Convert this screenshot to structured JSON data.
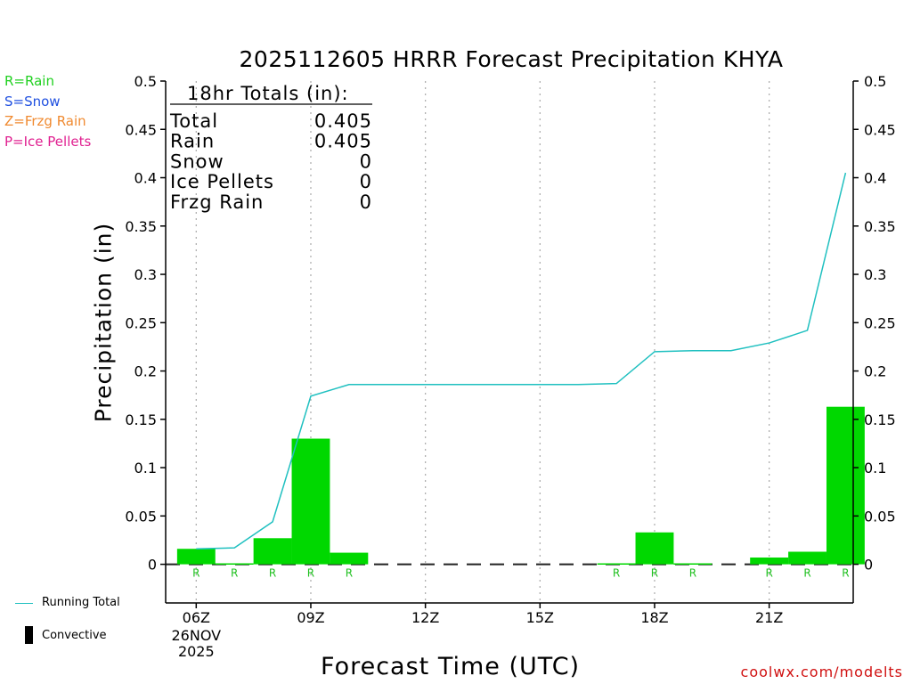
{
  "title": "2025112605 HRRR Forecast Precipitation KHYA",
  "precip_type_key": [
    {
      "label": "R=Rain",
      "color": "#20d020"
    },
    {
      "label": "S=Snow",
      "color": "#2050e0"
    },
    {
      "label": "Z=Frzg Rain",
      "color": "#f08a30"
    },
    {
      "label": "P=Ice Pellets",
      "color": "#e02090"
    }
  ],
  "totals_box": {
    "header": "18hr Totals (in):",
    "rows": [
      {
        "label": "Total",
        "value": "0.405"
      },
      {
        "label": "Rain",
        "value": "0.405"
      },
      {
        "label": "Snow",
        "value": "0"
      },
      {
        "label": "Ice Pellets",
        "value": "0"
      },
      {
        "label": "Frzg Rain",
        "value": "0"
      }
    ]
  },
  "legend": {
    "running_total": "Running Total",
    "convective": "Convective"
  },
  "credit": "coolwx.com/modelts",
  "colors": {
    "rain_bar": "#00d800",
    "running_total": "#20c0c0",
    "grid": "#b0b0b0",
    "type_marker": "#20c020",
    "convective": "#000000"
  },
  "chart_data": {
    "type": "bar",
    "xlabel": "Forecast Time (UTC)",
    "ylabel": "Precipitation (in)",
    "ylim": [
      -0.04,
      0.5
    ],
    "yticks": [
      "0",
      "0.05",
      "0.1",
      "0.15",
      "0.2",
      "0.25",
      "0.3",
      "0.35",
      "0.4",
      "0.45",
      "0.5"
    ],
    "ytick_values": [
      0,
      0.05,
      0.1,
      0.15,
      0.2,
      0.25,
      0.3,
      0.35,
      0.4,
      0.45,
      0.5
    ],
    "xlim_hours": [
      5.2,
      23.2
    ],
    "xticks": [
      {
        "hour": 6,
        "label": "06Z",
        "sub": [
          "26NOV",
          "2025"
        ]
      },
      {
        "hour": 9,
        "label": "09Z"
      },
      {
        "hour": 12,
        "label": "12Z"
      },
      {
        "hour": 15,
        "label": "15Z"
      },
      {
        "hour": 18,
        "label": "18Z"
      },
      {
        "hour": 21,
        "label": "21Z"
      }
    ],
    "grid": "vertical dotted at ticks",
    "hours": [
      6,
      7,
      8,
      9,
      10,
      11,
      12,
      13,
      14,
      15,
      16,
      17,
      18,
      19,
      20,
      21,
      22,
      23
    ],
    "hourly_precip": [
      0.016,
      0.001,
      0.027,
      0.13,
      0.012,
      0,
      0,
      0,
      0,
      0,
      0,
      0.001,
      0.033,
      0.001,
      0,
      0.007,
      0.013,
      0.163
    ],
    "running_total": [
      0.016,
      0.017,
      0.044,
      0.174,
      0.186,
      0.186,
      0.186,
      0.186,
      0.186,
      0.186,
      0.186,
      0.187,
      0.22,
      0.221,
      0.221,
      0.229,
      0.242,
      0.405
    ],
    "type_markers": [
      {
        "hour": 6,
        "type": "R"
      },
      {
        "hour": 7,
        "type": "R"
      },
      {
        "hour": 8,
        "type": "R"
      },
      {
        "hour": 9,
        "type": "R"
      },
      {
        "hour": 10,
        "type": "R"
      },
      {
        "hour": 17,
        "type": "R"
      },
      {
        "hour": 18,
        "type": "R"
      },
      {
        "hour": 19,
        "type": "R"
      },
      {
        "hour": 21,
        "type": "R"
      },
      {
        "hour": 22,
        "type": "R"
      },
      {
        "hour": 23,
        "type": "R"
      }
    ],
    "series": [
      {
        "name": "Running Total",
        "values": [
          0.016,
          0.017,
          0.044,
          0.174,
          0.186,
          0.186,
          0.186,
          0.186,
          0.186,
          0.186,
          0.186,
          0.187,
          0.22,
          0.221,
          0.221,
          0.229,
          0.242,
          0.405
        ]
      }
    ]
  }
}
